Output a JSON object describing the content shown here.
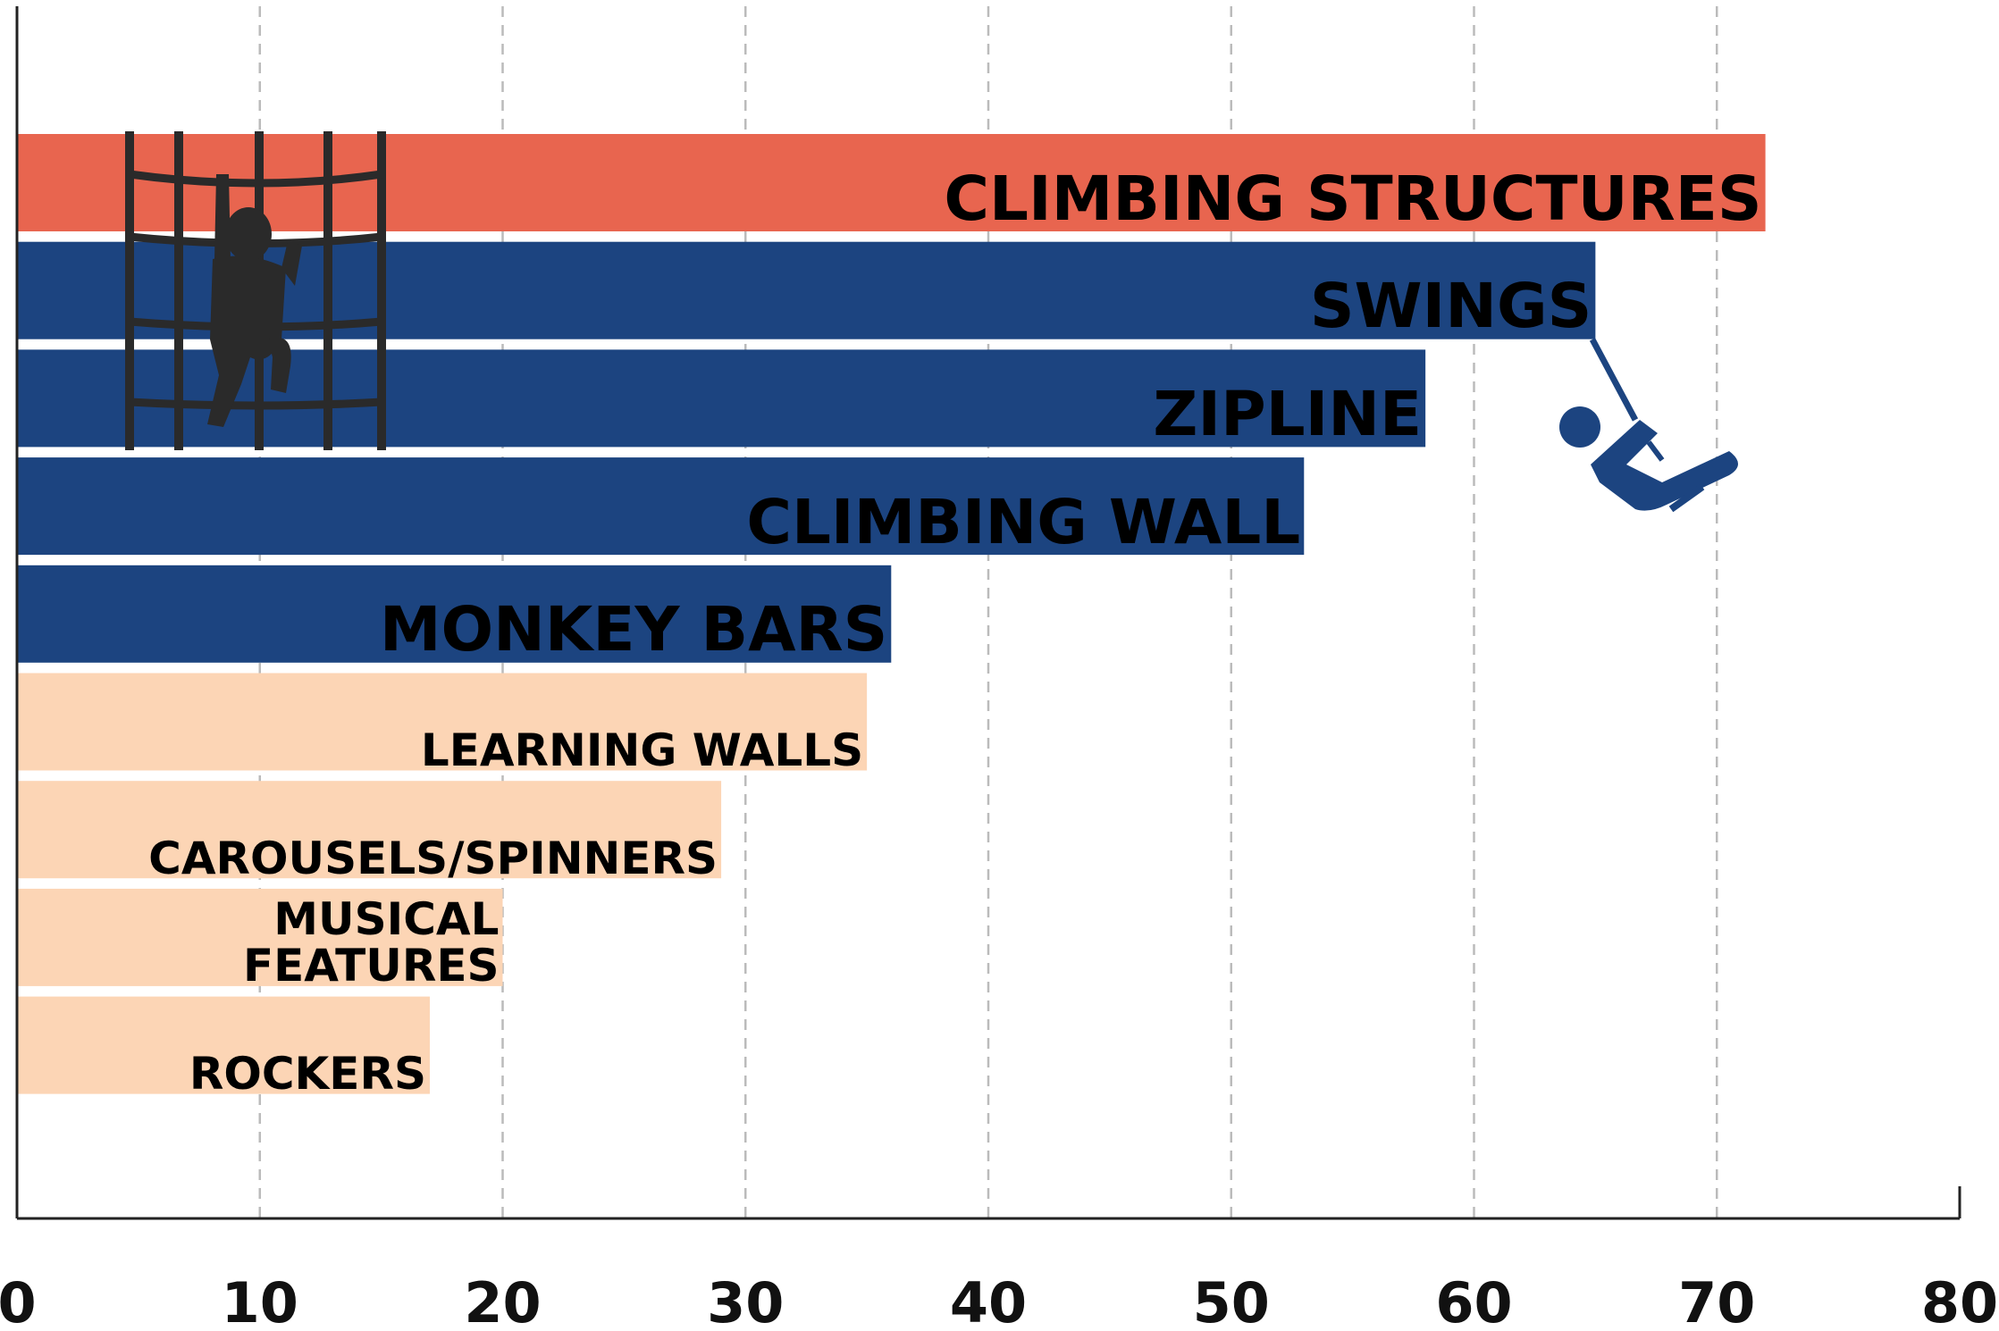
{
  "chart_data": {
    "type": "bar",
    "categories": [
      "CLIMBING STRUCTURES",
      "SWINGS",
      "ZIPLINE",
      "CLIMBING WALL",
      "MONKEY BARS",
      "LEARNING WALLS",
      "CAROUSELS/SPINNERS",
      "MUSICAL FEATURES",
      "ROCKERS"
    ],
    "values": [
      72,
      65,
      58,
      53,
      36,
      35,
      29,
      20,
      17
    ],
    "colors": [
      "#e8654f",
      "#1c4480",
      "#1c4480",
      "#1c4480",
      "#1c4480",
      "#fcd5b5",
      "#fcd5b5",
      "#fcd5b5",
      "#fcd5b5"
    ],
    "xlim": [
      0,
      80
    ],
    "xticks": [
      0,
      10,
      20,
      30,
      40,
      50,
      60,
      70,
      80
    ],
    "grid": true
  }
}
